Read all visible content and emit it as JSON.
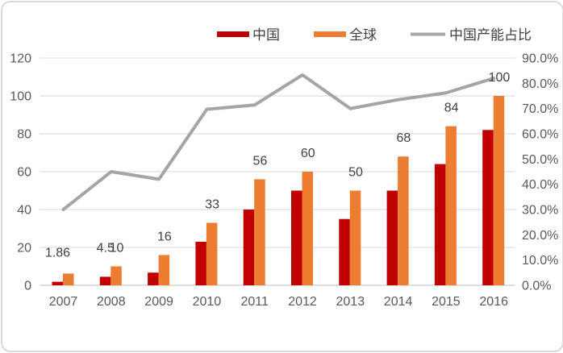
{
  "chart_data": {
    "type": "combo",
    "title": "",
    "categories": [
      "2007",
      "2008",
      "2009",
      "2010",
      "2011",
      "2012",
      "2013",
      "2014",
      "2015",
      "2016"
    ],
    "series": [
      {
        "name": "中国",
        "type": "bar",
        "axis": "left",
        "color": "#C00000",
        "values": [
          1.86,
          4.5,
          6.7,
          23,
          40,
          50,
          35,
          50,
          64,
          82
        ]
      },
      {
        "name": "全球",
        "type": "bar",
        "axis": "left",
        "color": "#ED7D31",
        "values": [
          6.2,
          10,
          16,
          33,
          56,
          60,
          50,
          68,
          84,
          100
        ]
      },
      {
        "name": "中国产能占比",
        "type": "line",
        "axis": "right",
        "color": "#A5A5A5",
        "unit": "%",
        "values": [
          30,
          45,
          42,
          69.7,
          71.4,
          83.3,
          70,
          73.5,
          76.2,
          82
        ]
      }
    ],
    "data_labels": [
      {
        "category": "2007",
        "series": "中国",
        "text": "1.86"
      },
      {
        "category": "2008",
        "series": "中国",
        "text": "4.5"
      },
      {
        "category": "2008",
        "series": "全球",
        "text": "10"
      },
      {
        "category": "2009",
        "series": "全球",
        "text": "16"
      },
      {
        "category": "2010",
        "series": "全球",
        "text": "33"
      },
      {
        "category": "2011",
        "series": "全球",
        "text": "56"
      },
      {
        "category": "2012",
        "series": "全球",
        "text": "60"
      },
      {
        "category": "2013",
        "series": "全球",
        "text": "50"
      },
      {
        "category": "2014",
        "series": "全球",
        "text": "68"
      },
      {
        "category": "2015",
        "series": "全球",
        "text": "84"
      },
      {
        "category": "2016",
        "series": "全球",
        "text": "100"
      }
    ],
    "left_axis": {
      "min": 0,
      "max": 120,
      "step": 20,
      "ticks": [
        "120",
        "100",
        "80",
        "60",
        "40",
        "20",
        "0"
      ]
    },
    "right_axis": {
      "min": 0,
      "max": 90,
      "step": 10,
      "ticks": [
        "90.0%",
        "80.0%",
        "70.0%",
        "60.0%",
        "50.0%",
        "40.0%",
        "30.0%",
        "20.0%",
        "10.0%",
        "0.0%"
      ]
    },
    "grid": true,
    "legend_position": "top"
  },
  "colors": {
    "gridline": "#D9D9D9",
    "baseline": "#BFBFBF",
    "axis_text": "#595959",
    "data_label_text": "#404040",
    "background": "#FFFFFF",
    "border": "#D9D9D9"
  }
}
